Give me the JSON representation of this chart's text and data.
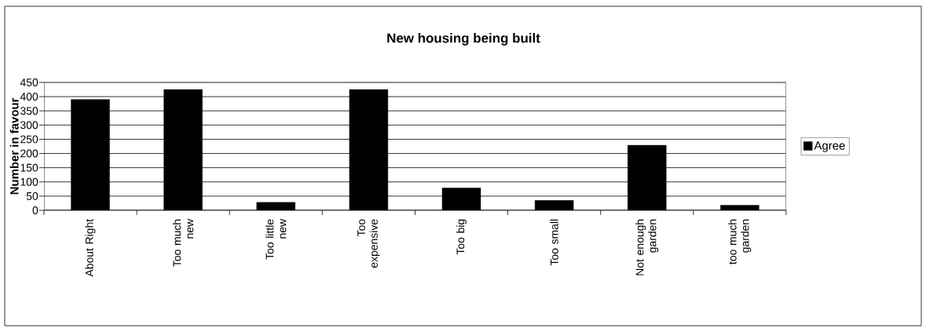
{
  "chart_data": {
    "type": "bar",
    "title": "New housing being built",
    "ylabel": "Number in favour",
    "categories": [
      "About Right",
      "Too much new",
      "Too little new",
      "Too expensive",
      "Too big",
      "Too small",
      "Not enough garden",
      "too much garden"
    ],
    "series": [
      {
        "name": "Agree",
        "color": "#000000",
        "values": [
          390,
          425,
          28,
          425,
          79,
          35,
          229,
          18
        ]
      }
    ],
    "ylim": [
      0,
      450
    ],
    "yticks": [
      0,
      50,
      100,
      150,
      200,
      250,
      300,
      350,
      400,
      450
    ],
    "grid": "y",
    "legend": "right"
  }
}
